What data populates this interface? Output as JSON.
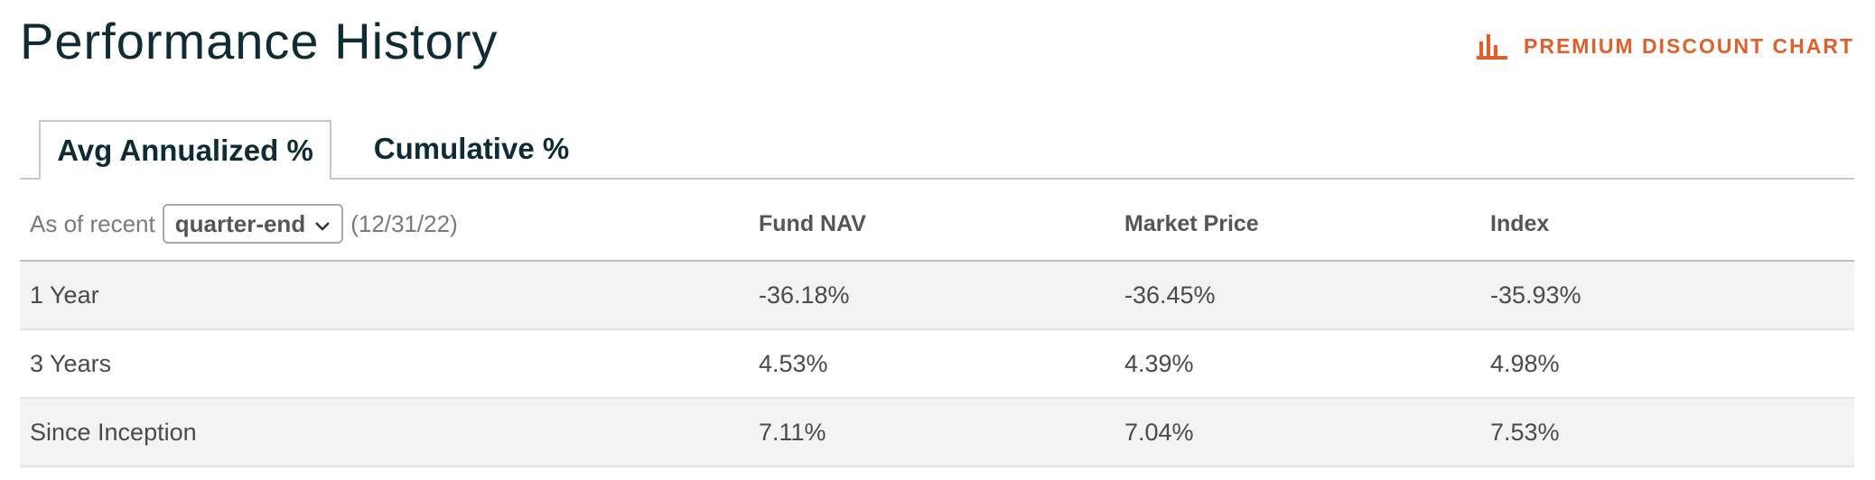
{
  "page": {
    "title": "Performance History"
  },
  "premium_link": {
    "label": "PREMIUM DISCOUNT CHART",
    "icon": "bar-chart-icon",
    "color": "#e0602c"
  },
  "tabs": [
    {
      "label": "Avg Annualized %",
      "active": true
    },
    {
      "label": "Cumulative %",
      "active": false
    }
  ],
  "as_of": {
    "prefix": "As of recent",
    "selected": "quarter-end",
    "date": "(12/31/22)"
  },
  "columns": [
    "Fund NAV",
    "Market Price",
    "Index"
  ],
  "rows": [
    {
      "label": "1 Year",
      "fund_nav": "-36.18%",
      "market_price": "-36.45%",
      "index": "-35.93%"
    },
    {
      "label": "3 Years",
      "fund_nav": "4.53%",
      "market_price": "4.39%",
      "index": "4.98%"
    },
    {
      "label": "Since Inception",
      "fund_nav": "7.11%",
      "market_price": "7.04%",
      "index": "7.53%"
    }
  ]
}
